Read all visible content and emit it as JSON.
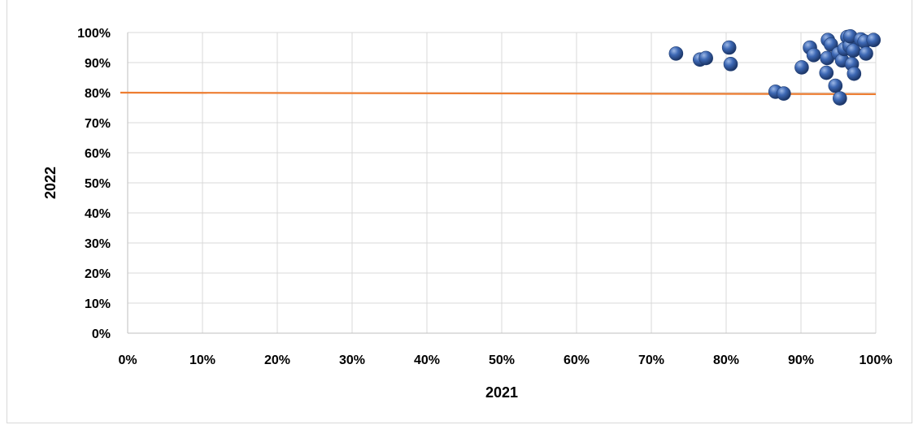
{
  "chart_data": {
    "type": "scatter",
    "title": "",
    "xlabel": "2021",
    "ylabel": "2022",
    "xlim": [
      0,
      1
    ],
    "ylim": [
      0,
      1
    ],
    "x_ticks": [
      "0%",
      "10%",
      "20%",
      "30%",
      "40%",
      "50%",
      "60%",
      "70%",
      "80%",
      "90%",
      "100%"
    ],
    "y_ticks": [
      "0%",
      "10%",
      "20%",
      "30%",
      "40%",
      "50%",
      "60%",
      "70%",
      "80%",
      "90%",
      "100%"
    ],
    "grid": true,
    "legend": "none",
    "marker_color": "#2f5597",
    "reference_line_color": "#ed7d31",
    "reference_line": {
      "y_start": 0.8,
      "y_end": 0.795
    },
    "series": [
      {
        "points": [
          {
            "x": 0.733,
            "y": 0.93
          },
          {
            "x": 0.765,
            "y": 0.91
          },
          {
            "x": 0.773,
            "y": 0.915
          },
          {
            "x": 0.804,
            "y": 0.95
          },
          {
            "x": 0.806,
            "y": 0.895
          },
          {
            "x": 0.866,
            "y": 0.803
          },
          {
            "x": 0.877,
            "y": 0.797
          },
          {
            "x": 0.901,
            "y": 0.884
          },
          {
            "x": 0.912,
            "y": 0.95
          },
          {
            "x": 0.917,
            "y": 0.925
          },
          {
            "x": 0.934,
            "y": 0.866
          },
          {
            "x": 0.935,
            "y": 0.915
          },
          {
            "x": 0.936,
            "y": 0.975
          },
          {
            "x": 0.94,
            "y": 0.96
          },
          {
            "x": 0.946,
            "y": 0.823
          },
          {
            "x": 0.95,
            "y": 0.93
          },
          {
            "x": 0.952,
            "y": 0.781
          },
          {
            "x": 0.955,
            "y": 0.907
          },
          {
            "x": 0.958,
            "y": 0.945
          },
          {
            "x": 0.962,
            "y": 0.985
          },
          {
            "x": 0.965,
            "y": 0.955
          },
          {
            "x": 0.966,
            "y": 0.987
          },
          {
            "x": 0.968,
            "y": 0.895
          },
          {
            "x": 0.97,
            "y": 0.94
          },
          {
            "x": 0.971,
            "y": 0.863
          },
          {
            "x": 0.98,
            "y": 0.977
          },
          {
            "x": 0.985,
            "y": 0.97
          },
          {
            "x": 0.987,
            "y": 0.93
          },
          {
            "x": 0.997,
            "y": 0.975
          }
        ]
      }
    ]
  }
}
